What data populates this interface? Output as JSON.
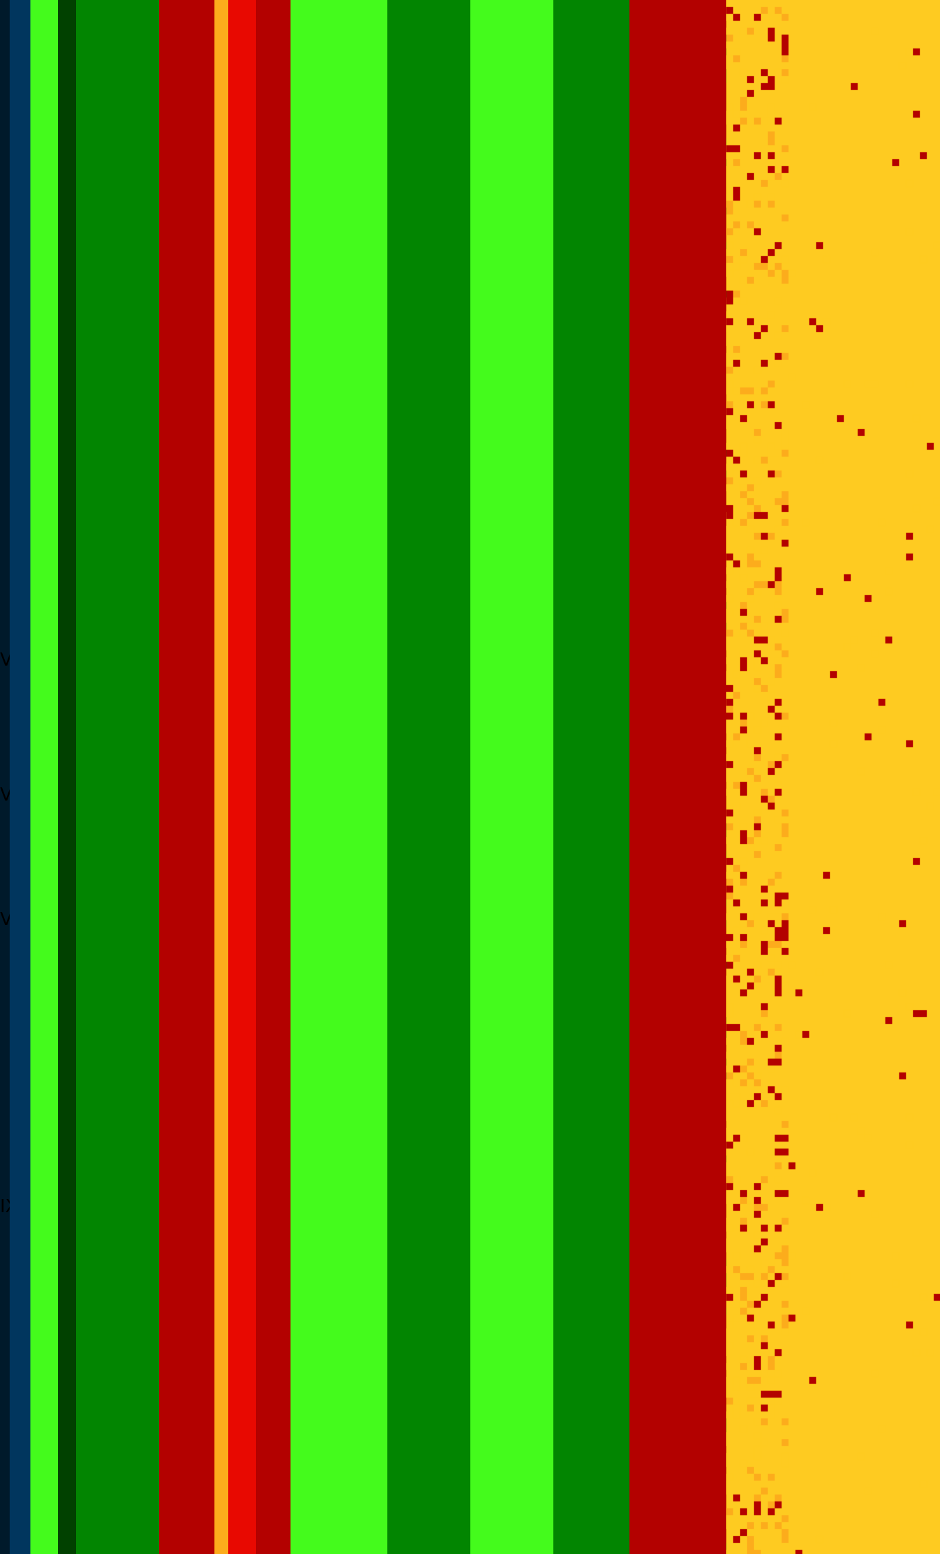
{
  "palette": {
    "navy": "#001A2B",
    "teal": "#01365E",
    "green_bright": "#44FB1C",
    "green_mid": "#028501",
    "green_dark": "#014100",
    "crimson": "#B30100",
    "red": "#E80901",
    "orange": "#FCAC1C",
    "yellow": "#FECB21",
    "pale": "#EEEAF5"
  },
  "edge_fragments": [
    "V",
    "V",
    "VI",
    "IX"
  ]
}
